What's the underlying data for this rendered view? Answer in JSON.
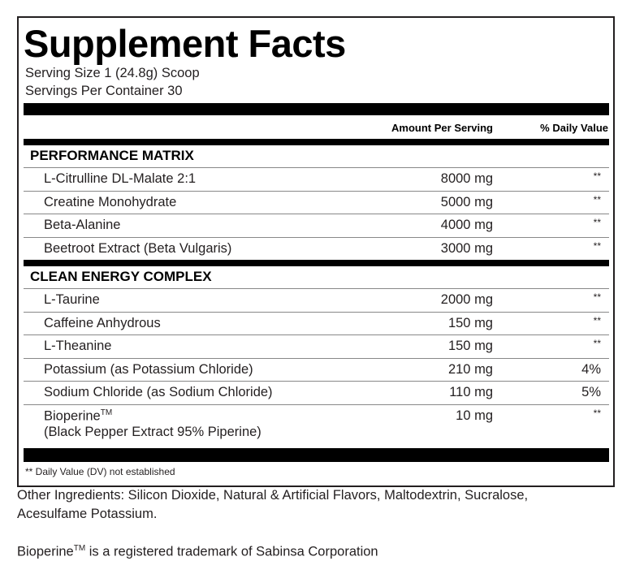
{
  "title": "Supplement Facts",
  "serving_size": "Serving Size 1 (24.8g) Scoop",
  "servings_per_container": "Servings Per Container 30",
  "headers": {
    "amount": "Amount Per Serving",
    "daily_value": "% Daily Value"
  },
  "sections": [
    {
      "name": "PERFORMANCE MATRIX",
      "rows": [
        {
          "name": "L-Citrulline DL-Malate 2:1",
          "amount": "8000 mg",
          "dv": "**"
        },
        {
          "name": "Creatine Monohydrate",
          "amount": "5000 mg",
          "dv": "**"
        },
        {
          "name": "Beta-Alanine",
          "amount": "4000 mg",
          "dv": "**"
        },
        {
          "name": "Beetroot Extract (Beta Vulgaris)",
          "amount": "3000 mg",
          "dv": "**"
        }
      ]
    },
    {
      "name": "CLEAN ENERGY COMPLEX",
      "rows": [
        {
          "name": "L-Taurine",
          "amount": "2000 mg",
          "dv": "**"
        },
        {
          "name": "Caffeine Anhydrous",
          "amount": "150 mg",
          "dv": "**"
        },
        {
          "name": "L-Theanine",
          "amount": "150 mg",
          "dv": "**"
        },
        {
          "name": "Potassium (as Potassium Chloride)",
          "amount": "210 mg",
          "dv": "4%"
        },
        {
          "name": "Sodium Chloride (as Sodium Chloride)",
          "amount": "110 mg",
          "dv": "5%"
        },
        {
          "name": "Bioperine",
          "tm": "TM",
          "name2": "(Black Pepper Extract 95% Piperine)",
          "amount": "10 mg",
          "dv": "**"
        }
      ]
    }
  ],
  "footnote": "** Daily Value (DV) not established",
  "other_ingredients_1": "Other Ingredients: Silicon Dioxide, Natural & Artificial Flavors, Maltodextrin, Sucralose,",
  "other_ingredients_2": "Acesulfame Potassium.",
  "trademark": {
    "name": "Bioperine",
    "tm": "TM",
    "text": " is a registered trademark of Sabinsa Corporation"
  }
}
